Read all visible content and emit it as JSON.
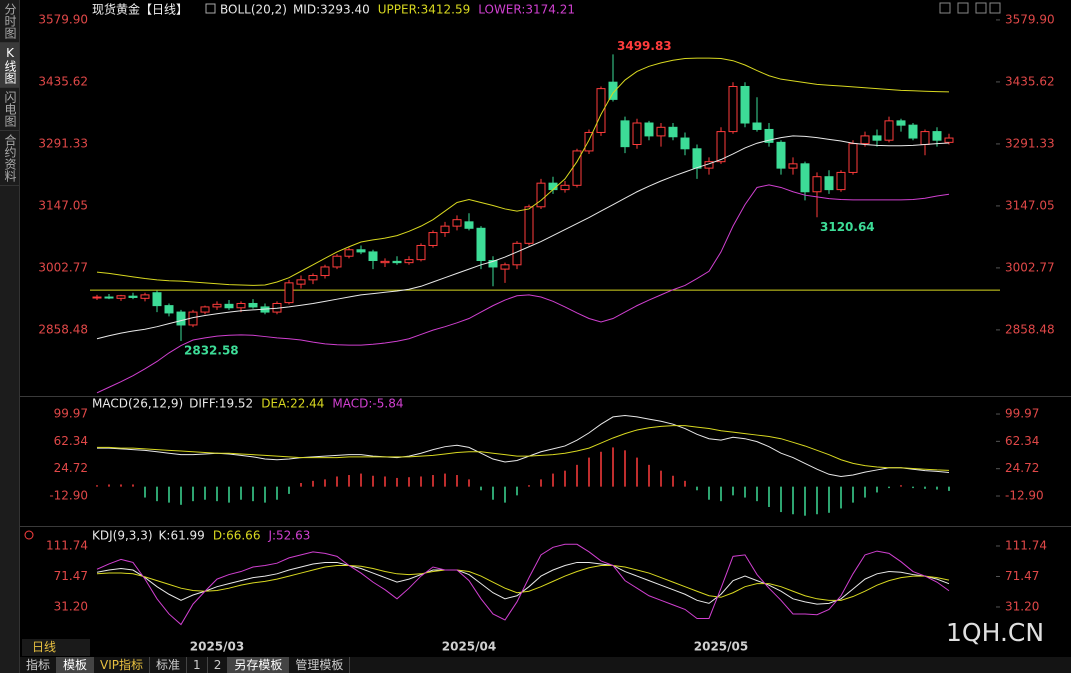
{
  "ui": {
    "sidebar": [
      "分时图",
      "K线图",
      "闪电图",
      "合约资料"
    ],
    "period": "日线",
    "tabs": [
      "指标",
      "模板",
      "VIP指标",
      "标准",
      "1",
      "2",
      "另存模板",
      "管理模板"
    ],
    "watermark": "1QH.CN"
  },
  "chart_data": [
    {
      "type": "candlestick",
      "title": "现货黄金【日线】",
      "indicator": "BOLL(20,2)",
      "categories": [
        null,
        null,
        null,
        null,
        null,
        null,
        null,
        null,
        null,
        null,
        "2025/03",
        null,
        null,
        null,
        null,
        null,
        null,
        null,
        null,
        null,
        null,
        null,
        null,
        null,
        null,
        null,
        null,
        null,
        null,
        null,
        null,
        "2025/04",
        null,
        null,
        null,
        null,
        null,
        null,
        null,
        null,
        null,
        null,
        null,
        null,
        null,
        null,
        null,
        null,
        null,
        null,
        null,
        null,
        "2025/05",
        null,
        null,
        null,
        null,
        null,
        null,
        null,
        null,
        null,
        null,
        null,
        null,
        null,
        null,
        null,
        null,
        null,
        null,
        null
      ],
      "open": [
        2933,
        2935,
        2932,
        2937,
        2932,
        2945,
        2915,
        2900,
        2870,
        2900,
        2912,
        2918,
        2910,
        2920,
        2912,
        2900,
        2922,
        2965,
        2975,
        2985,
        3005,
        3030,
        3045,
        3040,
        3015,
        3018,
        3015,
        3022,
        3055,
        3085,
        3100,
        3110,
        3095,
        3020,
        3000,
        3010,
        3060,
        3145,
        3200,
        3185,
        3195,
        3275,
        3318,
        3435,
        3345,
        3290,
        3340,
        3310,
        3330,
        3305,
        3280,
        3235,
        3250,
        3320,
        3425,
        3340,
        3325,
        3295,
        3235,
        3245,
        3180,
        3215,
        3185,
        3225,
        3292,
        3310,
        3300,
        3345,
        3335,
        3290,
        3320,
        3295
      ],
      "high": [
        2940,
        2942,
        2940,
        2945,
        2945,
        2950,
        2920,
        2905,
        2905,
        2915,
        2925,
        2928,
        2925,
        2930,
        2920,
        2925,
        2975,
        2985,
        2990,
        3010,
        3035,
        3050,
        3055,
        3045,
        3025,
        3030,
        3030,
        3060,
        3090,
        3110,
        3125,
        3130,
        3100,
        3030,
        3015,
        3065,
        3150,
        3210,
        3215,
        3205,
        3280,
        3325,
        3425,
        3499.83,
        3355,
        3350,
        3345,
        3340,
        3340,
        3318,
        3290,
        3260,
        3330,
        3435,
        3435,
        3400,
        3340,
        3300,
        3260,
        3250,
        3225,
        3230,
        3230,
        3300,
        3320,
        3325,
        3355,
        3350,
        3340,
        3325,
        3330,
        3315
      ],
      "low": [
        2928,
        2930,
        2926,
        2930,
        2925,
        2900,
        2890,
        2832.58,
        2865,
        2895,
        2905,
        2905,
        2900,
        2908,
        2895,
        2895,
        2918,
        2955,
        2965,
        2978,
        3000,
        3025,
        3035,
        3000,
        3005,
        3010,
        3010,
        3018,
        3050,
        3075,
        3090,
        3090,
        3000,
        2960,
        2968,
        3000,
        3055,
        3140,
        3175,
        3178,
        3190,
        3268,
        3310,
        3390,
        3270,
        3280,
        3300,
        3285,
        3300,
        3265,
        3210,
        3220,
        3245,
        3315,
        3330,
        3320,
        3285,
        3220,
        3220,
        3160,
        3120.64,
        3175,
        3180,
        3220,
        3285,
        3285,
        3295,
        3320,
        3300,
        3265,
        3285,
        3290
      ],
      "close": [
        2935,
        2933,
        2938,
        2934,
        2940,
        2915,
        2898,
        2870,
        2900,
        2912,
        2918,
        2910,
        2920,
        2912,
        2900,
        2920,
        2968,
        2975,
        2985,
        3005,
        3030,
        3045,
        3040,
        3020,
        3018,
        3015,
        3022,
        3055,
        3085,
        3100,
        3115,
        3095,
        3020,
        3005,
        3010,
        3060,
        3145,
        3200,
        3185,
        3195,
        3275,
        3318,
        3420,
        3395,
        3285,
        3340,
        3310,
        3330,
        3308,
        3280,
        3235,
        3250,
        3320,
        3425,
        3340,
        3325,
        3295,
        3235,
        3245,
        3180,
        3215,
        3185,
        3225,
        3292,
        3310,
        3300,
        3345,
        3335,
        3305,
        3320,
        3300,
        3305
      ],
      "series": [
        {
          "name": "MID:3293.40",
          "color": "#e8e8e8",
          "values": [
            2838,
            2845,
            2851,
            2856,
            2860,
            2866,
            2873,
            2880,
            2887,
            2892,
            2896,
            2900,
            2903,
            2905,
            2907,
            2909,
            2912,
            2916,
            2920,
            2925,
            2930,
            2935,
            2940,
            2943,
            2946,
            2949,
            2953,
            2960,
            2970,
            2980,
            2990,
            3000,
            3010,
            3018,
            3028,
            3040,
            3052,
            3064,
            3078,
            3092,
            3106,
            3120,
            3135,
            3150,
            3165,
            3180,
            3193,
            3205,
            3216,
            3226,
            3236,
            3245,
            3255,
            3268,
            3282,
            3293,
            3300,
            3306,
            3310,
            3309,
            3306,
            3302,
            3298,
            3293,
            3290,
            3288,
            3287,
            3287,
            3288,
            3290,
            3292,
            3293.4
          ]
        },
        {
          "name": "UPPER:3412.59",
          "color": "#d8d820",
          "values": [
            2993,
            2990,
            2986,
            2982,
            2978,
            2975,
            2973,
            2972,
            2970,
            2968,
            2966,
            2964,
            2963,
            2962,
            2963,
            2970,
            2980,
            2995,
            3010,
            3025,
            3040,
            3052,
            3063,
            3068,
            3072,
            3078,
            3088,
            3100,
            3115,
            3135,
            3155,
            3162,
            3155,
            3148,
            3140,
            3135,
            3140,
            3160,
            3185,
            3210,
            3250,
            3300,
            3360,
            3410,
            3440,
            3460,
            3472,
            3480,
            3486,
            3490,
            3491,
            3491,
            3490,
            3485,
            3475,
            3462,
            3450,
            3442,
            3438,
            3434,
            3430,
            3428,
            3426,
            3424,
            3422,
            3420,
            3418,
            3416,
            3415,
            3414,
            3413,
            3412.59
          ]
        },
        {
          "name": "LOWER:3174.21",
          "color": "#d040d0",
          "values": [
            2712,
            2725,
            2738,
            2752,
            2768,
            2785,
            2805,
            2822,
            2835,
            2840,
            2844,
            2846,
            2847,
            2846,
            2843,
            2840,
            2838,
            2835,
            2830,
            2826,
            2824,
            2823,
            2823,
            2825,
            2828,
            2832,
            2838,
            2848,
            2858,
            2866,
            2875,
            2885,
            2900,
            2915,
            2928,
            2938,
            2940,
            2935,
            2925,
            2912,
            2898,
            2885,
            2877,
            2885,
            2900,
            2915,
            2928,
            2940,
            2952,
            2962,
            2978,
            2995,
            3040,
            3100,
            3150,
            3190,
            3196,
            3190,
            3180,
            3172,
            3168,
            3164,
            3162,
            3161,
            3161,
            3161,
            3161,
            3161,
            3162,
            3165,
            3170,
            3174.21
          ]
        }
      ],
      "hline": 2951,
      "hline_color": "#d8d820",
      "up_color": "#ff3c3c",
      "down_color": "#3ddc97",
      "ylim": [
        2707,
        3603
      ],
      "yticks": [
        {
          "value": 3579.9,
          "label": "3579.90"
        },
        3435.62,
        3291.33,
        3147.05,
        3002.77,
        2858.48
      ]
    },
    {
      "type": "macd",
      "indicator": "MACD(26,12,9)",
      "series": [
        {
          "name": "DIFF:19.52",
          "color": "#e8e8e8",
          "type": "line",
          "values": [
            53,
            53,
            52,
            51,
            50,
            48,
            46,
            44,
            44,
            45,
            46,
            45,
            43,
            41,
            38,
            37,
            38,
            40,
            41,
            42,
            43,
            44,
            44,
            42,
            41,
            40,
            42,
            46,
            51,
            55,
            57,
            54,
            46,
            38,
            34,
            36,
            42,
            48,
            52,
            56,
            64,
            74,
            86,
            96,
            98,
            96,
            93,
            90,
            86,
            80,
            72,
            66,
            64,
            68,
            66,
            62,
            55,
            46,
            40,
            32,
            24,
            17,
            14,
            16,
            20,
            23,
            26,
            26,
            24,
            22,
            21,
            19.52
          ]
        },
        {
          "name": "DEA:22.44",
          "color": "#d8d820",
          "type": "line",
          "values": [
            54,
            54,
            53,
            53,
            52,
            51,
            50,
            49,
            48,
            47,
            46,
            46,
            45,
            44,
            43,
            42,
            41,
            40,
            40,
            40,
            40,
            41,
            41,
            41,
            41,
            41,
            41,
            42,
            43,
            45,
            47,
            48,
            48,
            46,
            44,
            42,
            42,
            43,
            44,
            46,
            49,
            53,
            60,
            67,
            73,
            78,
            81,
            83,
            84,
            84,
            82,
            80,
            77,
            75,
            73,
            71,
            69,
            66,
            61,
            56,
            50,
            44,
            37,
            32,
            29,
            27,
            26,
            26,
            25,
            24,
            23,
            22.44
          ]
        },
        {
          "name": "MACD:-5.84",
          "color": "#d040d0",
          "type": "bar",
          "values": [
            2,
            3,
            3,
            3,
            -15,
            -20,
            -22,
            -25,
            -20,
            -18,
            -20,
            -22,
            -18,
            -20,
            -22,
            -18,
            -10,
            5,
            8,
            10,
            14,
            16,
            18,
            15,
            14,
            12,
            13,
            14,
            16,
            18,
            16,
            10,
            -5,
            -18,
            -22,
            -12,
            2,
            10,
            18,
            22,
            30,
            40,
            48,
            54,
            50,
            40,
            30,
            22,
            15,
            8,
            -5,
            -18,
            -20,
            -12,
            -15,
            -20,
            -28,
            -35,
            -38,
            -40,
            -38,
            -36,
            -30,
            -22,
            -15,
            -8,
            -2,
            2,
            -2,
            -3,
            -4,
            -5.84
          ]
        }
      ],
      "up_color": "#ff3c3c",
      "down_color": "#3ddc97",
      "ylim": [
        -52.8,
        123.4
      ],
      "yticks": [
        99.97,
        62.34,
        24.72,
        {
          "value": -12.9,
          "label": "-12.90"
        }
      ]
    },
    {
      "type": "line",
      "indicator": "KDJ(9,3,3)",
      "series": [
        {
          "name": "K:61.99",
          "color": "#e8e8e8",
          "values": [
            77,
            80,
            82,
            80,
            70,
            58,
            48,
            40,
            47,
            52,
            58,
            62,
            66,
            70,
            72,
            75,
            80,
            84,
            88,
            90,
            90,
            86,
            82,
            76,
            70,
            64,
            68,
            74,
            80,
            80,
            80,
            74,
            62,
            50,
            42,
            46,
            58,
            72,
            80,
            86,
            90,
            90,
            88,
            86,
            78,
            72,
            66,
            60,
            54,
            48,
            40,
            36,
            48,
            66,
            72,
            66,
            60,
            52,
            42,
            38,
            35,
            36,
            42,
            55,
            68,
            75,
            78,
            77,
            74,
            72,
            68,
            61.99
          ]
        },
        {
          "name": "D:66.66",
          "color": "#d8d820",
          "values": [
            75,
            76,
            76,
            75,
            71,
            66,
            61,
            56,
            53,
            52,
            53,
            56,
            60,
            63,
            65,
            68,
            72,
            76,
            80,
            84,
            86,
            86,
            85,
            82,
            78,
            75,
            74,
            75,
            78,
            80,
            80,
            78,
            72,
            64,
            56,
            50,
            52,
            58,
            65,
            72,
            78,
            83,
            86,
            86,
            84,
            80,
            76,
            70,
            64,
            58,
            52,
            46,
            44,
            50,
            58,
            62,
            62,
            58,
            52,
            46,
            42,
            40,
            40,
            45,
            52,
            60,
            66,
            70,
            72,
            72,
            70,
            66.66
          ]
        },
        {
          "name": "J:52.63",
          "color": "#d040d0",
          "values": [
            81,
            88,
            94,
            90,
            68,
            42,
            22,
            8,
            35,
            52,
            68,
            74,
            78,
            84,
            86,
            89,
            96,
            100,
            104,
            102,
            98,
            86,
            76,
            64,
            54,
            42,
            56,
            72,
            84,
            80,
            80,
            66,
            42,
            22,
            14,
            38,
            70,
            100,
            110,
            114,
            114,
            104,
            92,
            86,
            66,
            56,
            46,
            40,
            34,
            28,
            16,
            16,
            56,
            98,
            100,
            74,
            56,
            40,
            22,
            22,
            21,
            28,
            46,
            75,
            100,
            105,
            102,
            91,
            78,
            72,
            64,
            52.63
          ]
        }
      ],
      "ylim": [
        -19,
        136.8
      ],
      "yticks": [
        111.74,
        71.47,
        {
          "value": 31.2,
          "label": "31.20"
        }
      ]
    }
  ]
}
